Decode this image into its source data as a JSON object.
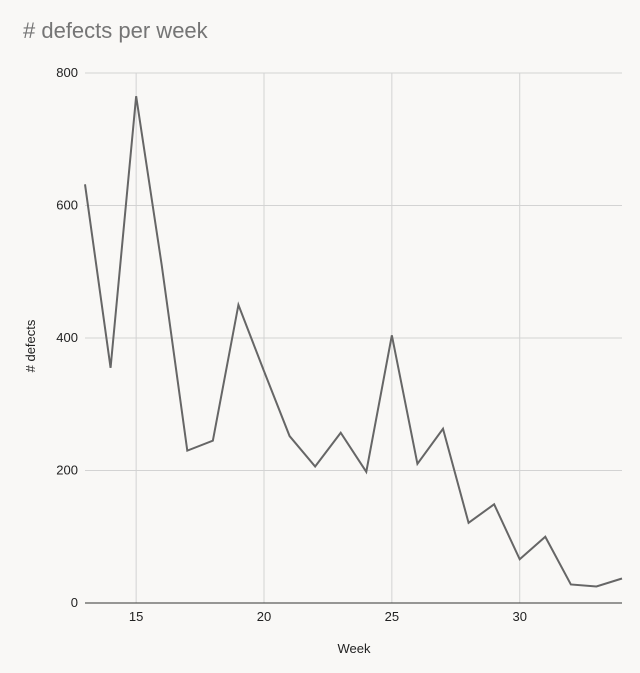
{
  "chart_data": {
    "type": "line",
    "title": "# defects per week",
    "xlabel": "Week",
    "ylabel": "# defects",
    "xlim": [
      13,
      34
    ],
    "ylim": [
      0,
      800
    ],
    "x_ticks": [
      15,
      20,
      25,
      30
    ],
    "y_ticks": [
      0,
      200,
      400,
      600,
      800
    ],
    "grid": true,
    "series_color": "#666666",
    "grid_color": "#d3d3d3",
    "x": [
      13,
      14,
      15,
      16,
      17,
      18,
      19,
      20,
      21,
      22,
      23,
      24,
      25,
      26,
      27,
      28,
      29,
      30,
      31,
      32,
      33,
      34
    ],
    "series": [
      {
        "values": [
          632,
          355,
          765,
          510,
          230,
          245,
          450,
          350,
          252,
          206,
          257,
          198,
          404,
          210,
          263,
          121,
          149,
          66,
          100,
          28,
          25,
          37
        ]
      }
    ]
  }
}
